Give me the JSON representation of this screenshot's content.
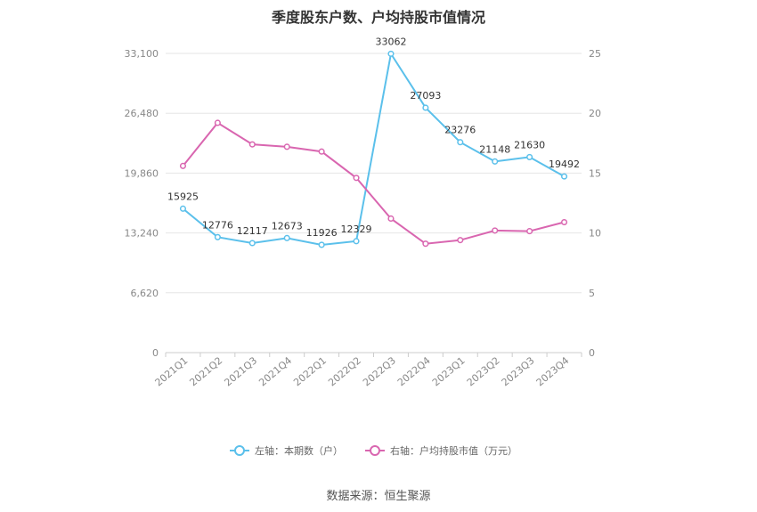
{
  "chart_data": {
    "type": "line",
    "title": "季度股东户数、户均持股市值情况",
    "categories": [
      "2021Q1",
      "2021Q2",
      "2021Q3",
      "2021Q4",
      "2022Q1",
      "2022Q2",
      "2022Q3",
      "2022Q4",
      "2023Q1",
      "2023Q2",
      "2023Q3",
      "2023Q4"
    ],
    "left_axis": {
      "ticks": [
        "0",
        "6,620",
        "13,240",
        "19,860",
        "26,480",
        "33,100"
      ],
      "ylim": [
        0,
        33100
      ]
    },
    "right_axis": {
      "ticks": [
        "0",
        "5",
        "10",
        "15",
        "20",
        "25"
      ],
      "ylim": [
        0,
        25
      ]
    },
    "series": [
      {
        "name": "左轴：本期数（户）",
        "axis": "left",
        "color": "#5bc0eb",
        "values": [
          15925,
          12776,
          12117,
          12673,
          11926,
          12329,
          33062,
          27093,
          23276,
          21148,
          21630,
          19492
        ],
        "labels": [
          "15925",
          "12776",
          "12117",
          "12673",
          "11926",
          "12329",
          "33062",
          "27093",
          "23276",
          "21148",
          "21630",
          "19492"
        ]
      },
      {
        "name": "右轴：户均持股市值（万元）",
        "axis": "right",
        "color": "#d966b0",
        "values": [
          15.6,
          19.2,
          17.4,
          17.2,
          16.8,
          14.6,
          11.2,
          9.1,
          9.4,
          10.2,
          10.15,
          10.9
        ]
      }
    ],
    "legend_position": "bottom",
    "grid": true
  },
  "source_text": "数据来源：恒生聚源"
}
